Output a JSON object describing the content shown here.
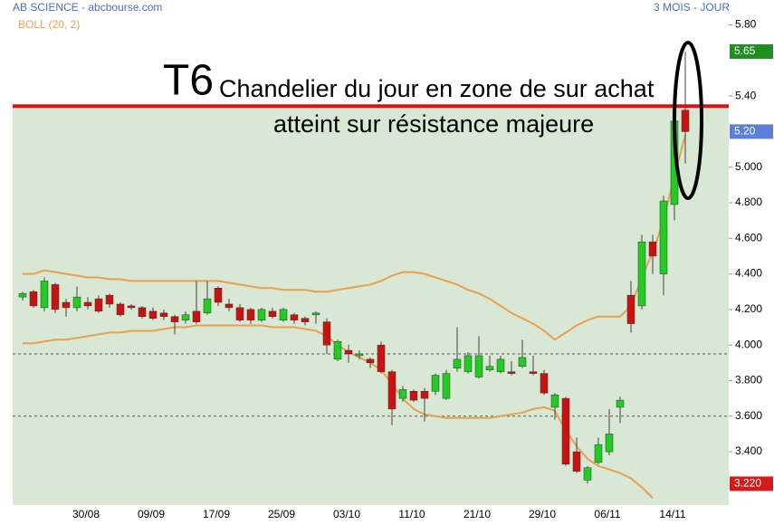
{
  "chart_data": {
    "type": "candlestick",
    "title": "AB SCIENCE - abcbourse.com",
    "period": "3 MOIS - JOUR",
    "indicator": "BOLL (20, 2)",
    "annotations": [
      "T6",
      "Chandelier du jour en zone de sur achat",
      "atteint sur résistance majeure"
    ],
    "categories": [
      null,
      null,
      null,
      null,
      null,
      null,
      "30/08",
      null,
      null,
      null,
      null,
      null,
      "09/09",
      null,
      null,
      null,
      null,
      null,
      "17/09",
      null,
      null,
      null,
      null,
      null,
      "25/09",
      null,
      null,
      null,
      null,
      null,
      "03/10",
      null,
      null,
      null,
      null,
      null,
      "11/10",
      null,
      null,
      null,
      null,
      null,
      "21/10",
      null,
      null,
      null,
      null,
      null,
      "29/10",
      null,
      null,
      null,
      null,
      null,
      "06/11",
      null,
      null,
      null,
      null,
      null,
      "14/11",
      null
    ],
    "open": [
      4.27,
      4.3,
      4.21,
      4.34,
      4.24,
      4.21,
      4.24,
      4.26,
      4.28,
      4.23,
      4.22,
      4.21,
      4.19,
      4.18,
      4.16,
      4.14,
      4.19,
      4.18,
      4.32,
      4.23,
      4.21,
      4.2,
      4.14,
      4.19,
      4.14,
      4.17,
      4.15,
      4.17,
      4.13,
      3.92,
      3.97,
      3.94,
      3.92,
      4.0,
      3.85,
      3.7,
      3.74,
      3.74,
      3.74,
      3.7,
      3.87,
      3.85,
      3.82,
      3.86,
      3.85,
      3.85,
      3.88,
      3.85,
      3.84,
      3.65,
      3.7,
      3.4,
      3.24,
      3.34,
      3.4,
      3.65,
      4.28,
      4.22,
      4.58,
      4.4,
      4.79,
      5.32
    ],
    "high": [
      4.3,
      4.31,
      4.38,
      4.35,
      4.26,
      4.33,
      4.27,
      4.28,
      4.29,
      4.24,
      4.23,
      4.22,
      4.21,
      4.2,
      4.17,
      4.19,
      4.36,
      4.36,
      4.33,
      4.26,
      4.23,
      4.21,
      4.21,
      4.21,
      4.21,
      4.18,
      4.16,
      4.19,
      4.15,
      4.03,
      4.0,
      3.97,
      3.93,
      4.02,
      3.86,
      3.77,
      3.75,
      3.76,
      3.84,
      3.86,
      4.1,
      3.96,
      4.05,
      3.94,
      3.94,
      3.91,
      4.03,
      3.94,
      3.86,
      3.73,
      3.71,
      3.48,
      3.32,
      3.48,
      3.64,
      3.71,
      4.36,
      4.62,
      4.62,
      4.84,
      5.28,
      5.65
    ],
    "low": [
      4.25,
      4.21,
      4.19,
      4.18,
      4.16,
      4.19,
      4.2,
      4.18,
      4.21,
      4.16,
      4.2,
      4.15,
      4.14,
      4.14,
      4.06,
      4.12,
      4.12,
      4.17,
      4.22,
      4.19,
      4.13,
      4.12,
      4.13,
      4.15,
      4.13,
      4.12,
      4.11,
      4.12,
      3.95,
      3.91,
      3.9,
      3.92,
      3.87,
      3.84,
      3.55,
      3.68,
      3.68,
      3.57,
      3.72,
      3.69,
      3.85,
      3.84,
      3.81,
      3.85,
      3.84,
      3.83,
      3.87,
      3.83,
      3.72,
      3.58,
      3.32,
      3.28,
      3.22,
      3.33,
      3.38,
      3.56,
      4.07,
      4.2,
      4.4,
      4.28,
      4.7,
      5.02
    ],
    "close": [
      4.29,
      4.22,
      4.36,
      4.2,
      4.21,
      4.27,
      4.22,
      4.19,
      4.23,
      4.17,
      4.21,
      4.16,
      4.15,
      4.16,
      4.13,
      4.17,
      4.13,
      4.26,
      4.24,
      4.21,
      4.14,
      4.14,
      4.2,
      4.16,
      4.2,
      4.14,
      4.13,
      4.18,
      4.0,
      4.02,
      3.95,
      3.95,
      3.9,
      3.85,
      3.64,
      3.75,
      3.69,
      3.7,
      3.83,
      3.84,
      3.92,
      3.94,
      3.94,
      3.88,
      3.92,
      3.84,
      3.93,
      3.84,
      3.73,
      3.72,
      3.33,
      3.29,
      3.31,
      3.44,
      3.5,
      3.69,
      4.12,
      4.58,
      4.5,
      4.81,
      5.26,
      5.2
    ],
    "up_color": "#22cc22",
    "down_color": "#cc1111",
    "upper_band": [
      4.4,
      4.4,
      4.42,
      4.41,
      4.4,
      4.39,
      4.38,
      4.38,
      4.37,
      4.37,
      4.36,
      4.36,
      4.36,
      4.36,
      4.36,
      4.36,
      4.36,
      4.36,
      4.36,
      4.35,
      4.34,
      4.33,
      4.32,
      4.32,
      4.31,
      4.31,
      4.31,
      4.3,
      4.3,
      4.31,
      4.32,
      4.33,
      4.34,
      4.36,
      4.39,
      4.41,
      4.41,
      4.4,
      4.38,
      4.36,
      4.34,
      4.31,
      4.29,
      4.26,
      4.22,
      4.18,
      4.15,
      4.12,
      4.08,
      4.03,
      4.07,
      4.11,
      4.14,
      4.16,
      4.16,
      4.16,
      4.22,
      4.38,
      4.52,
      4.7,
      4.95,
      5.18
    ],
    "lower_band": [
      4.01,
      4.01,
      4.02,
      4.03,
      4.03,
      4.04,
      4.05,
      4.06,
      4.07,
      4.07,
      4.08,
      4.08,
      4.08,
      4.09,
      4.1,
      4.1,
      4.11,
      4.11,
      4.11,
      4.11,
      4.11,
      4.11,
      4.11,
      4.1,
      4.1,
      4.1,
      4.09,
      4.08,
      4.05,
      4.0,
      3.96,
      3.93,
      3.9,
      3.86,
      3.78,
      3.7,
      3.64,
      3.61,
      3.6,
      3.59,
      3.59,
      3.59,
      3.59,
      3.59,
      3.6,
      3.61,
      3.62,
      3.64,
      3.65,
      3.63,
      3.52,
      3.43,
      3.36,
      3.32,
      3.3,
      3.28,
      3.25,
      3.2,
      3.14,
      null,
      null,
      null
    ],
    "band_color": "#e8a050",
    "ylim": [
      3.1,
      5.94
    ],
    "yticks": [
      {
        "value": 5.8,
        "label": "5.80"
      },
      {
        "value": 5.4,
        "label": "5.40"
      },
      {
        "value": 5.0,
        "label": "5.000"
      },
      {
        "value": 4.8,
        "label": "4.800"
      },
      {
        "value": 4.6,
        "label": "4.600"
      },
      {
        "value": 4.4,
        "label": "4.400"
      },
      {
        "value": 4.2,
        "label": "4.200"
      },
      {
        "value": 4.0,
        "label": "4.000"
      },
      {
        "value": 3.8,
        "label": "3.800"
      },
      {
        "value": 3.6,
        "label": "3.600"
      },
      {
        "value": 3.4,
        "label": "3.400"
      }
    ],
    "price_labels": [
      {
        "value": 5.65,
        "label": "5.65",
        "color": "#1f8f1f"
      },
      {
        "value": 5.2,
        "label": "5.20",
        "color": "#5b7fd6"
      },
      {
        "value": 3.22,
        "label": "3.220",
        "color": "#d01c1c"
      }
    ],
    "resistance_line": {
      "value": 5.343,
      "color": "#e01010"
    },
    "dotted_lines": [
      3.95,
      3.6
    ],
    "zone_color": "#d8e8d4"
  }
}
